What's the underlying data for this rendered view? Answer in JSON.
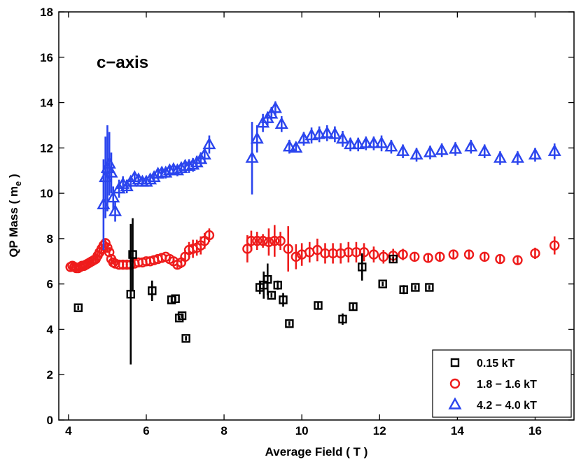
{
  "chart_data": {
    "type": "scatter",
    "title": "",
    "annotation": "c−axis",
    "xlabel": "Average Field ( T )",
    "ylabel_main": "QP Mass ( m",
    "ylabel_sub": "e",
    "ylabel_close": " )",
    "xlim": [
      3.75,
      17
    ],
    "ylim": [
      0,
      18
    ],
    "xticks": [
      4,
      6,
      8,
      10,
      12,
      14,
      16
    ],
    "yticks": [
      0,
      2,
      4,
      6,
      8,
      10,
      12,
      14,
      16,
      18
    ],
    "grid": false,
    "legend_position": "bottom-right",
    "series": [
      {
        "name": "0.15 kT",
        "marker": "square",
        "color": "#000000",
        "x": [
          4.25,
          5.6,
          5.65,
          6.15,
          6.65,
          6.75,
          6.85,
          6.92,
          7.02,
          8.92,
          9.02,
          9.12,
          9.22,
          9.38,
          9.52,
          9.68,
          10.42,
          11.05,
          11.32,
          11.55,
          12.08,
          12.35,
          12.62,
          12.92,
          13.28
        ],
        "y": [
          4.95,
          5.55,
          7.3,
          5.7,
          5.3,
          5.35,
          4.5,
          4.6,
          3.6,
          5.85,
          5.95,
          6.2,
          5.5,
          5.95,
          5.3,
          4.25,
          5.05,
          4.45,
          5.0,
          6.75,
          6.0,
          7.1,
          5.75,
          5.85,
          5.85
        ],
        "err": [
          0.1,
          3.1,
          1.6,
          0.45,
          0.1,
          0.1,
          0.1,
          0.1,
          0.1,
          0.3,
          0.6,
          0.7,
          0.1,
          0.2,
          0.3,
          0.1,
          0.15,
          0.25,
          0.15,
          0.6,
          0.1,
          0.1,
          0.2,
          0.1,
          0.1
        ]
      },
      {
        "name": "1.8 − 1.6 kT",
        "marker": "circle",
        "color": "#ee1c1c",
        "x": [
          4.05,
          4.1,
          4.15,
          4.2,
          4.25,
          4.3,
          4.35,
          4.4,
          4.45,
          4.5,
          4.55,
          4.6,
          4.65,
          4.7,
          4.75,
          4.8,
          4.85,
          4.9,
          4.95,
          5.0,
          5.05,
          5.1,
          5.15,
          5.2,
          5.3,
          5.4,
          5.5,
          5.6,
          5.7,
          5.8,
          5.9,
          6.0,
          6.1,
          6.2,
          6.3,
          6.4,
          6.5,
          6.6,
          6.7,
          6.8,
          6.9,
          7.0,
          7.1,
          7.2,
          7.3,
          7.4,
          7.5,
          7.62,
          8.6,
          8.7,
          8.85,
          9.0,
          9.15,
          9.3,
          9.45,
          9.65,
          9.85,
          10.0,
          10.2,
          10.4,
          10.6,
          10.8,
          11.0,
          11.2,
          11.4,
          11.6,
          11.85,
          12.1,
          12.35,
          12.6,
          12.9,
          13.25,
          13.55,
          13.9,
          14.3,
          14.7,
          15.1,
          15.55,
          16.0,
          16.5
        ],
        "y": [
          6.75,
          6.8,
          6.75,
          6.7,
          6.7,
          6.75,
          6.8,
          6.8,
          6.85,
          6.9,
          6.95,
          7.0,
          7.05,
          7.1,
          7.25,
          7.4,
          7.55,
          7.7,
          7.8,
          7.6,
          7.4,
          7.1,
          6.95,
          6.9,
          6.85,
          6.85,
          6.85,
          6.85,
          6.9,
          6.95,
          6.95,
          7.0,
          7.0,
          7.05,
          7.1,
          7.15,
          7.2,
          7.1,
          7.0,
          6.85,
          6.95,
          7.2,
          7.5,
          7.55,
          7.6,
          7.7,
          7.9,
          8.15,
          7.55,
          7.9,
          7.9,
          7.9,
          7.85,
          7.9,
          7.9,
          7.55,
          7.2,
          7.3,
          7.4,
          7.5,
          7.35,
          7.35,
          7.35,
          7.4,
          7.4,
          7.4,
          7.3,
          7.2,
          7.25,
          7.3,
          7.2,
          7.15,
          7.2,
          7.3,
          7.3,
          7.2,
          7.1,
          7.05,
          7.35,
          7.7
        ],
        "err": [
          0.1,
          0.1,
          0.1,
          0.1,
          0.1,
          0.1,
          0.1,
          0.1,
          0.1,
          0.1,
          0.1,
          0.1,
          0.1,
          0.1,
          0.15,
          0.15,
          0.15,
          0.2,
          0.2,
          0.2,
          0.2,
          0.15,
          0.1,
          0.1,
          0.1,
          0.1,
          0.1,
          0.1,
          0.1,
          0.1,
          0.1,
          0.1,
          0.1,
          0.1,
          0.1,
          0.1,
          0.1,
          0.1,
          0.15,
          0.2,
          0.25,
          0.3,
          0.35,
          0.4,
          0.35,
          0.4,
          0.35,
          0.3,
          0.6,
          0.45,
          0.4,
          0.3,
          0.6,
          0.7,
          0.4,
          1.0,
          0.55,
          0.5,
          0.45,
          0.5,
          0.45,
          0.45,
          0.45,
          0.45,
          0.45,
          0.4,
          0.35,
          0.3,
          0.3,
          0.25,
          0.2,
          0.2,
          0.2,
          0.2,
          0.2,
          0.2,
          0.2,
          0.2,
          0.25,
          0.4
        ]
      },
      {
        "name": "4.2 − 4.0 kT",
        "marker": "triangle",
        "color": "#2b45ee",
        "x": [
          4.9,
          4.95,
          5.0,
          5.05,
          5.1,
          5.15,
          5.2,
          5.3,
          5.4,
          5.5,
          5.6,
          5.7,
          5.8,
          5.9,
          6.0,
          6.1,
          6.2,
          6.3,
          6.4,
          6.5,
          6.6,
          6.7,
          6.8,
          6.9,
          7.0,
          7.1,
          7.2,
          7.3,
          7.4,
          7.5,
          7.62,
          8.72,
          8.85,
          9.0,
          9.12,
          9.22,
          9.32,
          9.48,
          9.68,
          9.85,
          10.05,
          10.25,
          10.45,
          10.65,
          10.85,
          11.05,
          11.25,
          11.45,
          11.65,
          11.85,
          12.05,
          12.3,
          12.6,
          12.95,
          13.3,
          13.6,
          13.95,
          14.35,
          14.7,
          15.1,
          15.55,
          16.0,
          16.5
        ],
        "y": [
          9.5,
          10.7,
          11.1,
          11.3,
          10.9,
          9.8,
          9.2,
          10.2,
          10.4,
          10.3,
          10.5,
          10.7,
          10.6,
          10.5,
          10.5,
          10.6,
          10.7,
          10.85,
          10.9,
          10.9,
          11.0,
          11.05,
          11.0,
          11.1,
          11.2,
          11.2,
          11.25,
          11.35,
          11.5,
          11.7,
          12.15,
          11.55,
          12.4,
          13.1,
          13.3,
          13.5,
          13.75,
          13.05,
          12.05,
          12.0,
          12.4,
          12.55,
          12.6,
          12.65,
          12.6,
          12.4,
          12.15,
          12.15,
          12.2,
          12.2,
          12.2,
          12.05,
          11.85,
          11.7,
          11.8,
          11.9,
          11.95,
          12.05,
          11.85,
          11.55,
          11.55,
          11.7,
          11.85
        ],
        "err": [
          2.0,
          1.8,
          1.9,
          1.4,
          0.9,
          0.5,
          0.45,
          0.4,
          0.35,
          0.3,
          0.25,
          0.2,
          0.2,
          0.2,
          0.2,
          0.2,
          0.2,
          0.2,
          0.25,
          0.25,
          0.25,
          0.25,
          0.25,
          0.25,
          0.25,
          0.3,
          0.3,
          0.3,
          0.3,
          0.35,
          0.4,
          1.6,
          0.6,
          0.4,
          0.3,
          0.3,
          0.3,
          0.35,
          0.3,
          0.2,
          0.3,
          0.35,
          0.35,
          0.35,
          0.35,
          0.35,
          0.3,
          0.3,
          0.3,
          0.3,
          0.35,
          0.3,
          0.3,
          0.3,
          0.3,
          0.3,
          0.3,
          0.3,
          0.3,
          0.3,
          0.3,
          0.3,
          0.35
        ]
      }
    ]
  }
}
